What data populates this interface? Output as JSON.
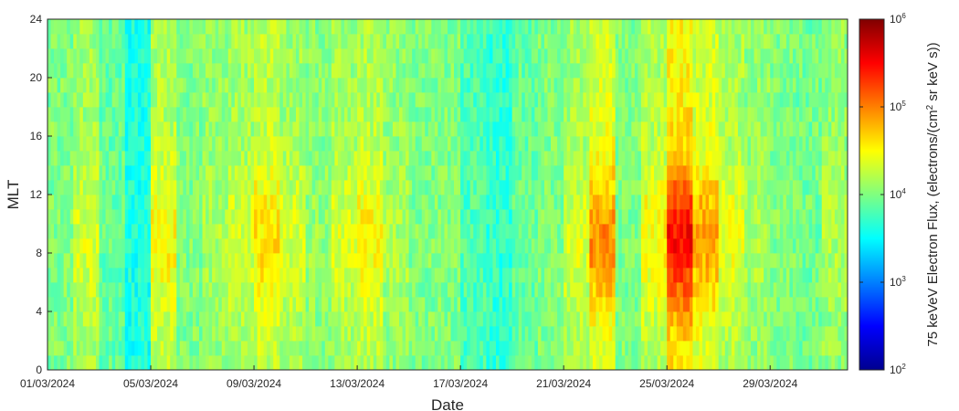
{
  "chart_data": {
    "type": "heatmap",
    "title": "",
    "xlabel": "Date",
    "ylabel": "MLT",
    "colorbar_label": "75 keVeV Electron Flux, (electrons/(cm² sr keV s))",
    "colorbar_label_parts": [
      "75 keVeV Electron Flux, (electrons/(cm",
      "2",
      " sr keV s))"
    ],
    "colormap": "jet",
    "color_scale": "log",
    "clim": [
      100,
      1000000
    ],
    "colorbar_ticks": [
      {
        "base": "10",
        "exp": "2"
      },
      {
        "base": "10",
        "exp": "3"
      },
      {
        "base": "10",
        "exp": "4"
      },
      {
        "base": "10",
        "exp": "5"
      },
      {
        "base": "10",
        "exp": "6"
      }
    ],
    "x_range": [
      "2024-03-01",
      "2024-04-01"
    ],
    "x_ticks": [
      "01/03/2024",
      "05/03/2024",
      "09/03/2024",
      "13/03/2024",
      "17/03/2024",
      "21/03/2024",
      "25/03/2024",
      "29/03/2024"
    ],
    "y_range": [
      0,
      24
    ],
    "y_ticks": [
      "0",
      "4",
      "8",
      "12",
      "16",
      "20",
      "24"
    ],
    "mlt_bin_hours": 1,
    "time_bin_hours": 3,
    "log10_flux_by_day": [
      {
        "date": "2024-03-01",
        "log10_flux": 4.0
      },
      {
        "date": "2024-03-02",
        "log10_flux": 4.2
      },
      {
        "date": "2024-03-03",
        "log10_flux": 3.9
      },
      {
        "date": "2024-03-04",
        "log10_flux": 3.6
      },
      {
        "date": "2024-03-05",
        "log10_flux": 4.3
      },
      {
        "date": "2024-03-06",
        "log10_flux": 4.0
      },
      {
        "date": "2024-03-07",
        "log10_flux": 4.1
      },
      {
        "date": "2024-03-08",
        "log10_flux": 4.2
      },
      {
        "date": "2024-03-09",
        "log10_flux": 4.35
      },
      {
        "date": "2024-03-10",
        "log10_flux": 4.2
      },
      {
        "date": "2024-03-11",
        "log10_flux": 4.05
      },
      {
        "date": "2024-03-12",
        "log10_flux": 4.2
      },
      {
        "date": "2024-03-13",
        "log10_flux": 4.3
      },
      {
        "date": "2024-03-14",
        "log10_flux": 4.1
      },
      {
        "date": "2024-03-15",
        "log10_flux": 4.0
      },
      {
        "date": "2024-03-16",
        "log10_flux": 4.0
      },
      {
        "date": "2024-03-17",
        "log10_flux": 3.8
      },
      {
        "date": "2024-03-18",
        "log10_flux": 3.7
      },
      {
        "date": "2024-03-19",
        "log10_flux": 3.9
      },
      {
        "date": "2024-03-20",
        "log10_flux": 4.0
      },
      {
        "date": "2024-03-21",
        "log10_flux": 4.2
      },
      {
        "date": "2024-03-22",
        "log10_flux": 4.55
      },
      {
        "date": "2024-03-23",
        "log10_flux": 4.0
      },
      {
        "date": "2024-03-24",
        "log10_flux": 4.3
      },
      {
        "date": "2024-03-25",
        "log10_flux": 4.85
      },
      {
        "date": "2024-03-26",
        "log10_flux": 4.5
      },
      {
        "date": "2024-03-27",
        "log10_flux": 4.25
      },
      {
        "date": "2024-03-28",
        "log10_flux": 4.1
      },
      {
        "date": "2024-03-29",
        "log10_flux": 4.0
      },
      {
        "date": "2024-03-30",
        "log10_flux": 3.95
      },
      {
        "date": "2024-03-31",
        "log10_flux": 4.1
      }
    ]
  }
}
